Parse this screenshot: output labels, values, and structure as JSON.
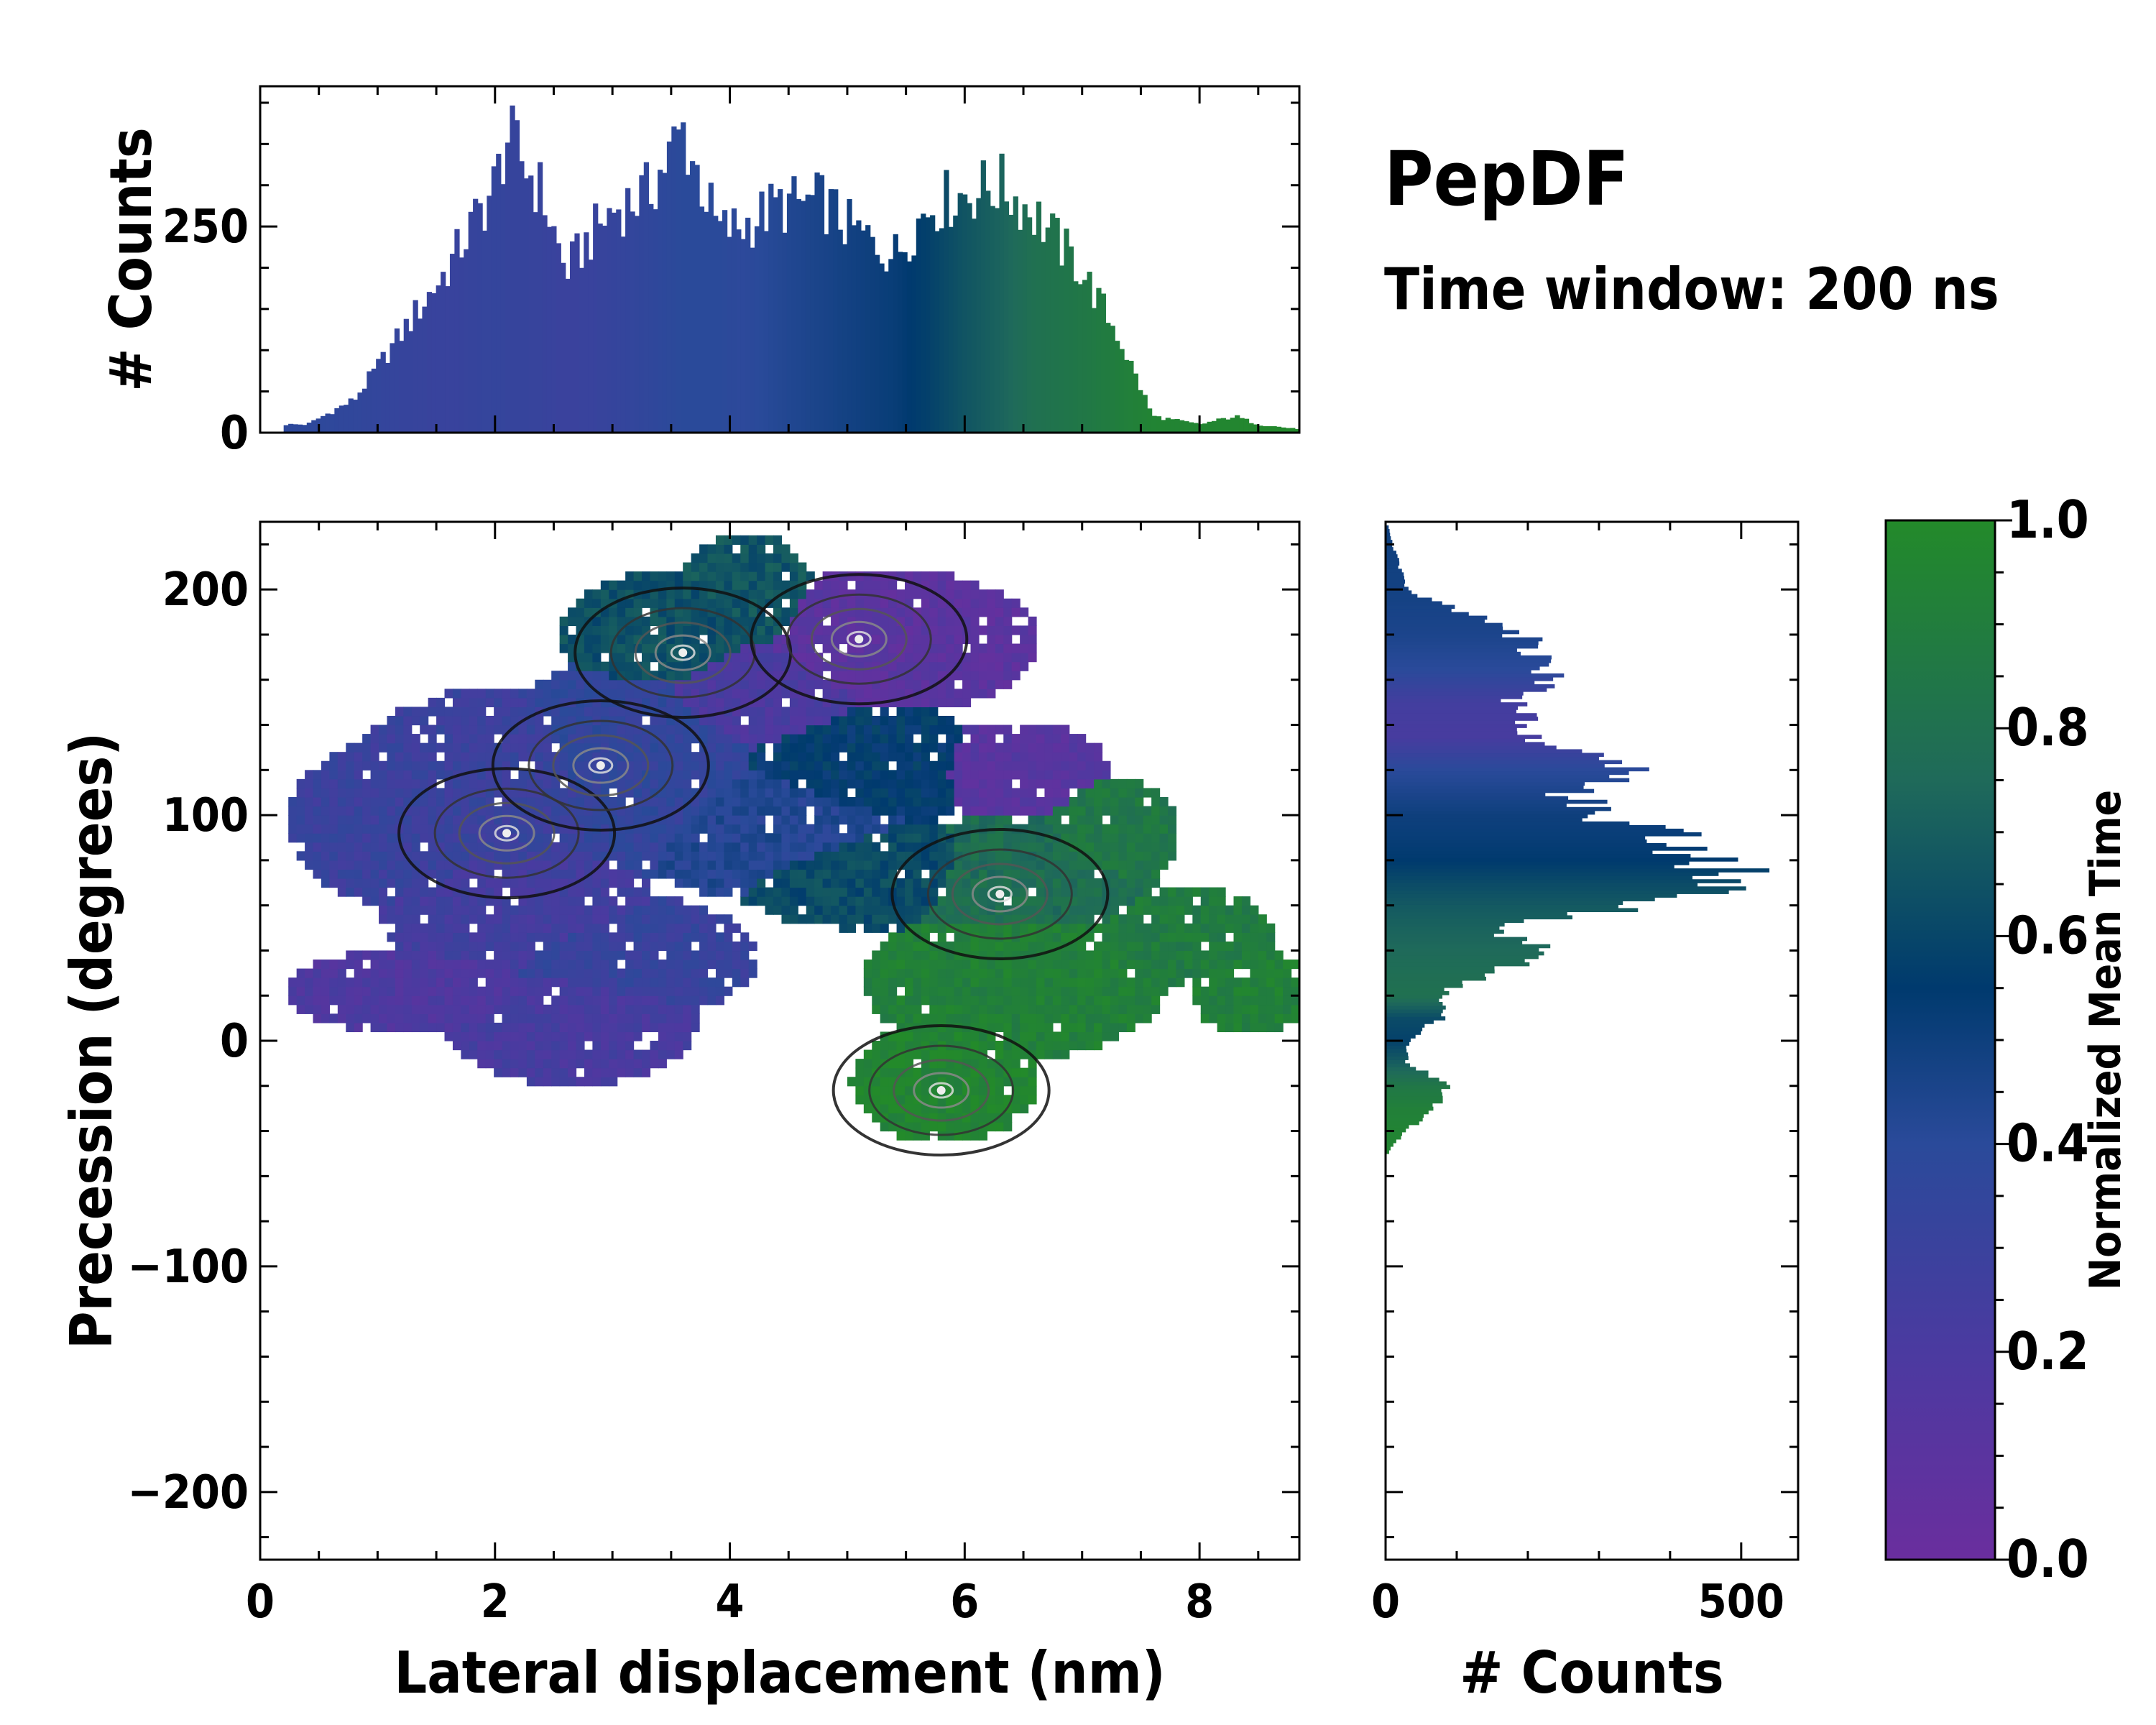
{
  "chart_data": {
    "type": "heatmap",
    "title": "PepDF",
    "subtitle": "Time window: 200 ns",
    "colormap": {
      "label": "Normalized Mean Time",
      "range": [
        0.0,
        1.0
      ],
      "ticks": [
        "0.0",
        "0.2",
        "0.4",
        "0.6",
        "0.8",
        "1.0"
      ],
      "stops": [
        "#6a2e9e",
        "#4b3aa0",
        "#2a4a9a",
        "#003a6e",
        "#1f6a5a",
        "#238a2a"
      ]
    },
    "main": {
      "xlabel": "Lateral displacement (nm)",
      "ylabel": "Precession (degrees)",
      "xlim": [
        0,
        8.85
      ],
      "ylim": [
        -230,
        230
      ],
      "xticks": [
        0,
        2,
        4,
        6,
        8
      ],
      "yticks": [
        -200,
        -100,
        0,
        100,
        200
      ],
      "density_peaks": [
        {
          "x": 2.1,
          "y": 92,
          "t": 0.28
        },
        {
          "x": 2.9,
          "y": 122,
          "t": 0.35
        },
        {
          "x": 3.6,
          "y": 172,
          "t": 0.62
        },
        {
          "x": 5.1,
          "y": 178,
          "t": 0.12
        },
        {
          "x": 6.3,
          "y": 65,
          "t": 0.78
        },
        {
          "x": 5.8,
          "y": -22,
          "t": 0.95
        }
      ]
    },
    "top_histogram": {
      "ylabel": "# Counts",
      "ylim": [
        0,
        420
      ],
      "yticks": [
        0,
        250
      ],
      "x": [
        0.4,
        0.8,
        1.2,
        1.6,
        2.0,
        2.1,
        2.4,
        2.6,
        2.8,
        3.0,
        3.3,
        3.6,
        3.9,
        4.1,
        4.4,
        4.8,
        5.0,
        5.4,
        5.7,
        6.0,
        6.3,
        6.6,
        7.0,
        7.3,
        7.6,
        8.0,
        8.3,
        8.5,
        8.8
      ],
      "counts": [
        10,
        40,
        120,
        200,
        300,
        360,
        290,
        195,
        235,
        270,
        290,
        365,
        245,
        250,
        275,
        280,
        250,
        215,
        275,
        290,
        300,
        265,
        195,
        120,
        20,
        10,
        20,
        10,
        5
      ],
      "time": [
        0.38,
        0.36,
        0.33,
        0.31,
        0.34,
        0.33,
        0.32,
        0.3,
        0.31,
        0.33,
        0.36,
        0.4,
        0.4,
        0.38,
        0.42,
        0.46,
        0.48,
        0.52,
        0.58,
        0.66,
        0.72,
        0.8,
        0.85,
        0.9,
        0.95,
        0.96,
        0.97,
        0.98,
        0.99
      ]
    },
    "right_histogram": {
      "xlabel": "# Counts",
      "xlim": [
        0,
        580
      ],
      "xticks": [
        0,
        500
      ],
      "y": [
        225,
        200,
        180,
        165,
        150,
        135,
        120,
        110,
        100,
        90,
        80,
        70,
        60,
        50,
        40,
        30,
        20,
        10,
        0,
        -10,
        -20,
        -30,
        -40,
        -48
      ],
      "counts": [
        5,
        30,
        190,
        240,
        180,
        200,
        350,
        260,
        300,
        420,
        440,
        520,
        350,
        150,
        240,
        140,
        70,
        80,
        30,
        30,
        90,
        70,
        30,
        5
      ],
      "time": [
        0.5,
        0.48,
        0.45,
        0.4,
        0.25,
        0.22,
        0.4,
        0.45,
        0.5,
        0.52,
        0.55,
        0.62,
        0.68,
        0.72,
        0.75,
        0.78,
        0.8,
        0.62,
        0.58,
        0.7,
        0.85,
        0.92,
        0.95,
        0.96
      ]
    }
  }
}
